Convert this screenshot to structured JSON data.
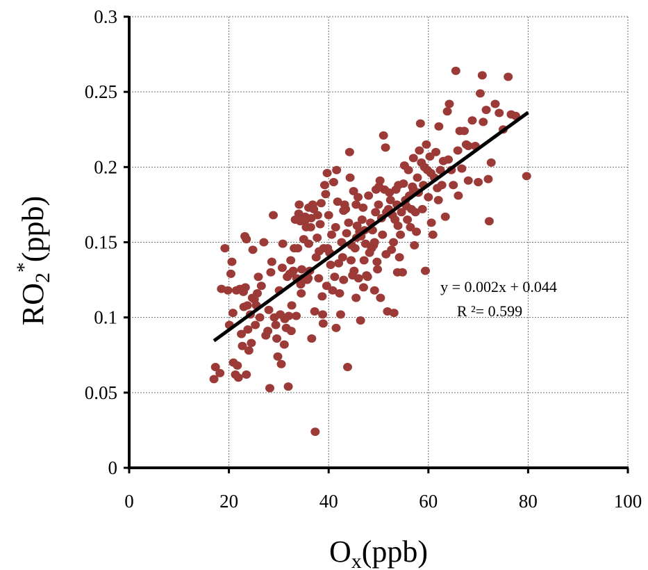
{
  "chart_data": {
    "type": "scatter",
    "xlabel": {
      "main": "O",
      "sub": "x",
      "rest": "(ppb)"
    },
    "ylabel": {
      "main": "RO",
      "sub": "2",
      "sup": "*",
      "rest": "(ppb)"
    },
    "xlim": [
      0,
      100
    ],
    "ylim": [
      0,
      0.3
    ],
    "xticks": [
      0,
      20,
      40,
      60,
      80,
      100
    ],
    "yticks": [
      0,
      0.05,
      0.1,
      0.15,
      0.2,
      0.25,
      0.3
    ],
    "xtick_labels": [
      "0",
      "20",
      "40",
      "60",
      "80",
      "100"
    ],
    "ytick_labels": [
      "0",
      "0.05",
      "0.1",
      "0.15",
      "0.2",
      "0.25",
      "0.3"
    ],
    "grid": true,
    "marker_color": "#9b3a36",
    "trendline": {
      "slope": 0.00241,
      "intercept": 0.0435,
      "x_range": [
        17,
        80
      ],
      "color": "#000000"
    },
    "annotations": {
      "equation": "y = 0.002x + 0.044",
      "r_squared": "R ²= 0.599"
    },
    "points": [
      [
        17,
        0.059
      ],
      [
        17.3,
        0.067
      ],
      [
        18.2,
        0.063
      ],
      [
        18.5,
        0.119
      ],
      [
        19.2,
        0.146
      ],
      [
        19.8,
        0.118
      ],
      [
        20.1,
        0.095
      ],
      [
        20.4,
        0.129
      ],
      [
        20.6,
        0.137
      ],
      [
        20.8,
        0.103
      ],
      [
        20.9,
        0.07
      ],
      [
        21.3,
        0.062
      ],
      [
        21.5,
        0.118
      ],
      [
        21.7,
        0.068
      ],
      [
        21.9,
        0.06
      ],
      [
        22.2,
        0.119
      ],
      [
        22.5,
        0.089
      ],
      [
        22.7,
        0.081
      ],
      [
        22.9,
        0.117
      ],
      [
        23,
        0.107
      ],
      [
        23.2,
        0.154
      ],
      [
        23.3,
        0.12
      ],
      [
        23.5,
        0.062
      ],
      [
        23.7,
        0.108
      ],
      [
        23.8,
        0.092
      ],
      [
        24,
        0.078
      ],
      [
        24.3,
        0.102
      ],
      [
        24.5,
        0.083
      ],
      [
        24.7,
        0.113
      ],
      [
        24.8,
        0.145
      ],
      [
        25.1,
        0.112
      ],
      [
        25.3,
        0.095
      ],
      [
        25.5,
        0.108
      ],
      [
        25.7,
        0.116
      ],
      [
        25.9,
        0.127
      ],
      [
        26.2,
        0.1
      ],
      [
        27,
        0.15
      ],
      [
        27.4,
        0.088
      ],
      [
        27.8,
        0.091
      ],
      [
        28.2,
        0.053
      ],
      [
        28.4,
        0.13
      ],
      [
        28.6,
        0.137
      ],
      [
        28.9,
        0.168
      ],
      [
        29.1,
        0.1
      ],
      [
        29.4,
        0.095
      ],
      [
        29.6,
        0.086
      ],
      [
        29.8,
        0.074
      ],
      [
        30.1,
        0.118
      ],
      [
        30.3,
        0.102
      ],
      [
        30.5,
        0.069
      ],
      [
        30.7,
        0.133
      ],
      [
        30.8,
        0.149
      ],
      [
        31.1,
        0.082
      ],
      [
        31.2,
        0.099
      ],
      [
        31.5,
        0.093
      ],
      [
        31.7,
        0.127
      ],
      [
        31.9,
        0.054
      ],
      [
        32,
        0.101
      ],
      [
        32.2,
        0.129
      ],
      [
        32.4,
        0.138
      ],
      [
        32.6,
        0.108
      ],
      [
        32.9,
        0.131
      ],
      [
        33.1,
        0.146
      ],
      [
        33.3,
        0.165
      ],
      [
        33.5,
        0.101
      ],
      [
        33.6,
        0.126
      ],
      [
        33.8,
        0.146
      ],
      [
        34,
        0.169
      ],
      [
        34.1,
        0.175
      ],
      [
        34.3,
        0.164
      ],
      [
        34.4,
        0.122
      ],
      [
        34.6,
        0.132
      ],
      [
        34.8,
        0.126
      ],
      [
        35,
        0.152
      ],
      [
        35.2,
        0.164
      ],
      [
        35.3,
        0.167
      ],
      [
        35.5,
        0.16
      ],
      [
        35.7,
        0.125
      ],
      [
        35.9,
        0.126
      ],
      [
        36,
        0.149
      ],
      [
        36.2,
        0.131
      ],
      [
        36.4,
        0.16
      ],
      [
        36.5,
        0.166
      ],
      [
        36.6,
        0.086
      ],
      [
        36.8,
        0.175
      ],
      [
        37,
        0.172
      ],
      [
        37.2,
        0.104
      ],
      [
        37.3,
        0.024
      ],
      [
        37.5,
        0.14
      ],
      [
        37.7,
        0.153
      ],
      [
        37.8,
        0.168
      ],
      [
        38,
        0.126
      ],
      [
        38.1,
        0.144
      ],
      [
        38.3,
        0.162
      ],
      [
        38.5,
        0.176
      ],
      [
        38.7,
        0.114
      ],
      [
        38.8,
        0.102
      ],
      [
        38.9,
        0.096
      ],
      [
        39,
        0.146
      ],
      [
        39.2,
        0.188
      ],
      [
        39.4,
        0.182
      ],
      [
        39.6,
        0.121
      ],
      [
        39.7,
        0.196
      ],
      [
        39.8,
        0.146
      ],
      [
        40,
        0.168
      ],
      [
        40.2,
        0.143
      ],
      [
        40.4,
        0.135
      ],
      [
        40.6,
        0.155
      ],
      [
        40.8,
        0.118
      ],
      [
        41,
        0.19
      ],
      [
        41.2,
        0.127
      ],
      [
        41.4,
        0.16
      ],
      [
        41.6,
        0.198
      ],
      [
        41.8,
        0.177
      ],
      [
        42,
        0.136
      ],
      [
        42.2,
        0.116
      ],
      [
        42.4,
        0.102
      ],
      [
        42.6,
        0.15
      ],
      [
        42.8,
        0.14
      ],
      [
        43,
        0.125
      ],
      [
        43.2,
        0.175
      ],
      [
        43.4,
        0.172
      ],
      [
        43.6,
        0.156
      ],
      [
        43.8,
        0.067
      ],
      [
        44,
        0.163
      ],
      [
        44.2,
        0.21
      ],
      [
        44.3,
        0.193
      ],
      [
        44.5,
        0.138
      ],
      [
        44.6,
        0.148
      ],
      [
        44.8,
        0.128
      ],
      [
        45,
        0.184
      ],
      [
        45.1,
        0.131
      ],
      [
        45.3,
        0.146
      ],
      [
        45.5,
        0.113
      ],
      [
        45.6,
        0.153
      ],
      [
        45.7,
        0.161
      ],
      [
        45.9,
        0.18
      ],
      [
        46,
        0.126
      ],
      [
        46.2,
        0.157
      ],
      [
        46.4,
        0.098
      ],
      [
        46.5,
        0.154
      ],
      [
        46.7,
        0.165
      ],
      [
        46.9,
        0.173
      ],
      [
        47.1,
        0.138
      ],
      [
        47.2,
        0.158
      ],
      [
        47.4,
        0.149
      ],
      [
        47.6,
        0.128
      ],
      [
        47.8,
        0.127
      ],
      [
        48,
        0.181
      ],
      [
        48.2,
        0.143
      ],
      [
        48.4,
        0.163
      ],
      [
        48.6,
        0.146
      ],
      [
        48.8,
        0.158
      ],
      [
        49,
        0.148
      ],
      [
        49.2,
        0.15
      ],
      [
        49.4,
        0.17
      ],
      [
        49.5,
        0.185
      ],
      [
        49.7,
        0.137
      ],
      [
        49.8,
        0.132
      ],
      [
        50,
        0.175
      ],
      [
        50.1,
        0.187
      ],
      [
        50.3,
        0.191
      ],
      [
        50.4,
        0.113
      ],
      [
        50.6,
        0.166
      ],
      [
        50.8,
        0.155
      ],
      [
        51,
        0.221
      ],
      [
        51.2,
        0.185
      ],
      [
        51.4,
        0.213
      ],
      [
        51.6,
        0.17
      ],
      [
        51.8,
        0.104
      ],
      [
        52,
        0.172
      ],
      [
        52.2,
        0.183
      ],
      [
        52.4,
        0.178
      ],
      [
        52.6,
        0.145
      ],
      [
        52.8,
        0.168
      ],
      [
        53,
        0.15
      ],
      [
        53.1,
        0.103
      ],
      [
        53.3,
        0.165
      ],
      [
        53.5,
        0.185
      ],
      [
        53.7,
        0.175
      ],
      [
        53.9,
        0.161
      ],
      [
        54,
        0.188
      ],
      [
        54.2,
        0.14
      ],
      [
        54.4,
        0.155
      ],
      [
        54.6,
        0.17
      ],
      [
        54.8,
        0.13
      ],
      [
        55,
        0.189
      ],
      [
        55.2,
        0.201
      ],
      [
        55.4,
        0.178
      ],
      [
        55.6,
        0.174
      ],
      [
        55.8,
        0.165
      ],
      [
        56,
        0.198
      ],
      [
        56.2,
        0.181
      ],
      [
        56.4,
        0.16
      ],
      [
        56.6,
        0.172
      ],
      [
        56.8,
        0.187
      ],
      [
        57,
        0.206
      ],
      [
        57.2,
        0.148
      ],
      [
        57.4,
        0.17
      ],
      [
        57.6,
        0.157
      ],
      [
        57.8,
        0.193
      ],
      [
        58,
        0.183
      ],
      [
        58.2,
        0.211
      ],
      [
        58.4,
        0.229
      ],
      [
        58.6,
        0.203
      ],
      [
        58.8,
        0.172
      ],
      [
        59,
        0.188
      ],
      [
        59.2,
        0.2
      ],
      [
        59.4,
        0.131
      ],
      [
        59.6,
        0.215
      ],
      [
        59.8,
        0.198
      ],
      [
        60,
        0.18
      ],
      [
        60.3,
        0.207
      ],
      [
        60.6,
        0.163
      ],
      [
        60.9,
        0.155
      ],
      [
        61.2,
        0.193
      ],
      [
        61.5,
        0.21
      ],
      [
        61.8,
        0.186
      ],
      [
        62.1,
        0.227
      ],
      [
        62.4,
        0.198
      ],
      [
        62.7,
        0.188
      ],
      [
        63,
        0.204
      ],
      [
        63.4,
        0.167
      ],
      [
        63.8,
        0.237
      ],
      [
        64.2,
        0.242
      ],
      [
        64.6,
        0.198
      ],
      [
        65,
        0.188
      ],
      [
        65.5,
        0.264
      ],
      [
        65.9,
        0.211
      ],
      [
        66.3,
        0.224
      ],
      [
        66.7,
        0.199
      ],
      [
        67.2,
        0.224
      ],
      [
        67.6,
        0.215
      ],
      [
        68,
        0.191
      ],
      [
        68.8,
        0.231
      ],
      [
        69.4,
        0.214
      ],
      [
        70,
        0.19
      ],
      [
        70.4,
        0.249
      ],
      [
        70.8,
        0.261
      ],
      [
        71.6,
        0.238
      ],
      [
        72.2,
        0.164
      ],
      [
        72.6,
        0.203
      ],
      [
        73.4,
        0.242
      ],
      [
        74.2,
        0.236
      ],
      [
        75,
        0.225
      ],
      [
        76,
        0.26
      ],
      [
        76.6,
        0.235
      ],
      [
        77.5,
        0.234
      ],
      [
        79.7,
        0.194
      ],
      [
        23.5,
        0.152
      ],
      [
        26.5,
        0.121
      ],
      [
        28,
        0.105
      ],
      [
        32.5,
        0.091
      ],
      [
        34.5,
        0.116
      ],
      [
        36,
        0.173
      ],
      [
        41.5,
        0.093
      ],
      [
        43,
        0.171
      ],
      [
        45.5,
        0.175
      ],
      [
        47,
        0.12
      ],
      [
        49.2,
        0.118
      ],
      [
        51.5,
        0.142
      ],
      [
        53.8,
        0.13
      ],
      [
        57,
        0.185
      ],
      [
        60.5,
        0.196
      ],
      [
        62,
        0.178
      ],
      [
        64,
        0.205
      ],
      [
        66,
        0.181
      ],
      [
        68,
        0.214
      ],
      [
        71,
        0.23
      ],
      [
        72,
        0.192
      ]
    ]
  }
}
